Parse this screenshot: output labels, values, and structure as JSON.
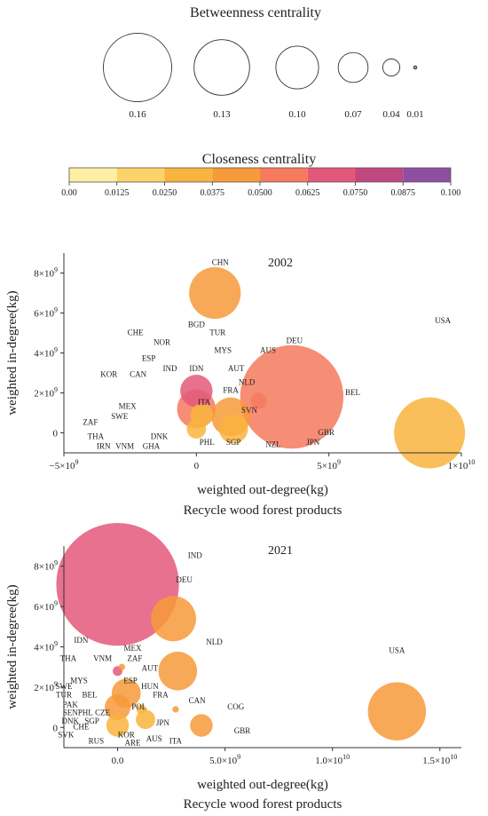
{
  "legend_size": {
    "title": "Betweenness centrality",
    "items": [
      {
        "label": "0.16",
        "value": 0.16
      },
      {
        "label": "0.13",
        "value": 0.13
      },
      {
        "label": "0.10",
        "value": 0.1
      },
      {
        "label": "0.07",
        "value": 0.07
      },
      {
        "label": "0.04",
        "value": 0.04
      },
      {
        "label": "0.01",
        "value": 0.01
      }
    ]
  },
  "legend_color": {
    "title": "Closeness centrality",
    "ticks": [
      "0.00",
      "0.0125",
      "0.0250",
      "0.0375",
      "0.0500",
      "0.0625",
      "0.0750",
      "0.0875",
      "0.100"
    ],
    "colors": [
      "#ffefa3",
      "#fcd36a",
      "#f9b43e",
      "#f79a3a",
      "#f57a5e",
      "#e3587a",
      "#c0477f",
      "#8e4fa0"
    ]
  },
  "chart_data": [
    {
      "type": "scatter",
      "title": "2002",
      "xlabel": "weighted out-degree(kg)",
      "ylabel": "weighted in-degree(kg)",
      "subtitle": "Recycle wood forest products",
      "xlim": [
        -5000000000,
        10000000000
      ],
      "ylim": [
        -1000000000,
        9000000000
      ],
      "xticks": [
        {
          "value": -5000000000,
          "mant": "−5×10",
          "exp": "9"
        },
        {
          "value": 0,
          "mant": "0",
          "exp": ""
        },
        {
          "value": 5000000000,
          "mant": "5×10",
          "exp": "9"
        },
        {
          "value": 10000000000,
          "mant": "1×10",
          "exp": "10"
        }
      ],
      "yticks": [
        {
          "value": 0,
          "mant": "0",
          "exp": ""
        },
        {
          "value": 2000000000,
          "mant": "2×10",
          "exp": "9"
        },
        {
          "value": 4000000000,
          "mant": "4×10",
          "exp": "9"
        },
        {
          "value": 6000000000,
          "mant": "6×10",
          "exp": "9"
        },
        {
          "value": 8000000000,
          "mant": "8×10",
          "exp": "9"
        }
      ],
      "points": [
        {
          "x": 3600000000,
          "y": 1800000000,
          "betweenness": 0.16,
          "closeness": 0.05
        },
        {
          "x": 8800000000,
          "y": 0,
          "betweenness": 0.11,
          "closeness": 0.035
        },
        {
          "x": 700000000,
          "y": 7000000000,
          "betweenness": 0.08,
          "closeness": 0.045
        },
        {
          "x": 0,
          "y": 2100000000,
          "betweenness": 0.05,
          "closeness": 0.065
        },
        {
          "x": 0,
          "y": 1200000000,
          "betweenness": 0.06,
          "closeness": 0.06
        },
        {
          "x": 1300000000,
          "y": 800000000,
          "betweenness": 0.06,
          "closeness": 0.04
        },
        {
          "x": 1400000000,
          "y": 200000000,
          "betweenness": 0.045,
          "closeness": 0.03
        },
        {
          "x": 200000000,
          "y": 900000000,
          "betweenness": 0.035,
          "closeness": 0.028
        },
        {
          "x": 0,
          "y": 200000000,
          "betweenness": 0.03,
          "closeness": 0.03
        },
        {
          "x": 2350000000,
          "y": 1600000000,
          "betweenness": 0.025,
          "closeness": 0.05
        }
      ],
      "labels": [
        {
          "text": "CHN",
          "x": 900000000,
          "y": 8400000000
        },
        {
          "text": "BGD",
          "x": 0,
          "y": 5300000000
        },
        {
          "text": "CHE",
          "x": -2300000000,
          "y": 4900000000
        },
        {
          "text": "TUR",
          "x": 800000000,
          "y": 4900000000
        },
        {
          "text": "NOR",
          "x": -1300000000,
          "y": 4400000000
        },
        {
          "text": "MYS",
          "x": 1000000000,
          "y": 4000000000
        },
        {
          "text": "AUS",
          "x": 2700000000,
          "y": 4000000000
        },
        {
          "text": "DEU",
          "x": 3700000000,
          "y": 4500000000
        },
        {
          "text": "USA",
          "x": 9300000000,
          "y": 5500000000
        },
        {
          "text": "ESP",
          "x": -1800000000,
          "y": 3600000000
        },
        {
          "text": "IND",
          "x": -1000000000,
          "y": 3100000000
        },
        {
          "text": "IDN",
          "x": 0,
          "y": 3100000000
        },
        {
          "text": "AUT",
          "x": 1500000000,
          "y": 3100000000
        },
        {
          "text": "KOR",
          "x": -3300000000,
          "y": 2800000000
        },
        {
          "text": "CAN",
          "x": -2200000000,
          "y": 2800000000
        },
        {
          "text": "NLD",
          "x": 1900000000,
          "y": 2400000000
        },
        {
          "text": "FRA",
          "x": 1300000000,
          "y": 2000000000
        },
        {
          "text": "BEL",
          "x": 5900000000,
          "y": 1900000000
        },
        {
          "text": "MEX",
          "x": -2600000000,
          "y": 1200000000
        },
        {
          "text": "ITA",
          "x": 300000000,
          "y": 1400000000
        },
        {
          "text": "SVN",
          "x": 2000000000,
          "y": 1000000000
        },
        {
          "text": "SWE",
          "x": -2900000000,
          "y": 700000000
        },
        {
          "text": "ZAF",
          "x": -4000000000,
          "y": 400000000
        },
        {
          "text": "GBR",
          "x": 4900000000,
          "y": -100000000
        },
        {
          "text": "THA",
          "x": -3800000000,
          "y": -300000000
        },
        {
          "text": "DNK",
          "x": -1400000000,
          "y": -300000000
        },
        {
          "text": "IRN",
          "x": -3500000000,
          "y": -800000000
        },
        {
          "text": "VNM",
          "x": -2700000000,
          "y": -800000000
        },
        {
          "text": "GHA",
          "x": -1700000000,
          "y": -800000000
        },
        {
          "text": "PHL",
          "x": 400000000,
          "y": -600000000
        },
        {
          "text": "SGP",
          "x": 1400000000,
          "y": -600000000
        },
        {
          "text": "NZL",
          "x": 2900000000,
          "y": -700000000
        },
        {
          "text": "JPN",
          "x": 4400000000,
          "y": -600000000
        }
      ]
    },
    {
      "type": "scatter",
      "title": "2021",
      "xlabel": "weighted out-degree(kg)",
      "ylabel": "weighted in-degree(kg)",
      "subtitle": "Recycle wood forest products",
      "xlim": [
        -2500000000,
        16000000000
      ],
      "ylim": [
        -1000000000,
        9000000000
      ],
      "xticks": [
        {
          "value": 0,
          "mant": "0.0",
          "exp": ""
        },
        {
          "value": 5000000000,
          "mant": "5.0×10",
          "exp": "9"
        },
        {
          "value": 10000000000,
          "mant": "1.0×10",
          "exp": "10"
        },
        {
          "value": 15000000000,
          "mant": "1.5×10",
          "exp": "10"
        }
      ],
      "yticks": [
        {
          "value": 0,
          "mant": "0",
          "exp": ""
        },
        {
          "value": 2000000000,
          "mant": "2×10",
          "exp": "9"
        },
        {
          "value": 4000000000,
          "mant": "4×10",
          "exp": "9"
        },
        {
          "value": 6000000000,
          "mant": "6×10",
          "exp": "9"
        },
        {
          "value": 8000000000,
          "mant": "8×10",
          "exp": "9"
        }
      ],
      "points": [
        {
          "x": 0,
          "y": 7100000000,
          "betweenness": 0.19,
          "closeness": 0.075
        },
        {
          "x": 13000000000,
          "y": 800000000,
          "betweenness": 0.09,
          "closeness": 0.045
        },
        {
          "x": 2600000000,
          "y": 5400000000,
          "betweenness": 0.07,
          "closeness": 0.045
        },
        {
          "x": 2800000000,
          "y": 2800000000,
          "betweenness": 0.06,
          "closeness": 0.045
        },
        {
          "x": 400000000,
          "y": 1700000000,
          "betweenness": 0.045,
          "closeness": 0.045
        },
        {
          "x": 0,
          "y": 1000000000,
          "betweenness": 0.04,
          "closeness": 0.045
        },
        {
          "x": 0,
          "y": 100000000,
          "betweenness": 0.035,
          "closeness": 0.03
        },
        {
          "x": 1300000000,
          "y": 400000000,
          "betweenness": 0.03,
          "closeness": 0.03
        },
        {
          "x": 3900000000,
          "y": 100000000,
          "betweenness": 0.035,
          "closeness": 0.045
        },
        {
          "x": 0,
          "y": 2800000000,
          "betweenness": 0.015,
          "closeness": 0.07
        },
        {
          "x": 200000000,
          "y": 3000000000,
          "betweenness": 0.01,
          "closeness": 0.045
        },
        {
          "x": 1100000000,
          "y": 900000000,
          "betweenness": 0.015,
          "closeness": 0.035
        },
        {
          "x": 2700000000,
          "y": 900000000,
          "betweenness": 0.01,
          "closeness": 0.045
        }
      ],
      "labels": [
        {
          "text": "IND",
          "x": 3600000000,
          "y": 8400000000
        },
        {
          "text": "DEU",
          "x": 3100000000,
          "y": 7200000000
        },
        {
          "text": "USA",
          "x": 13000000000,
          "y": 3700000000
        },
        {
          "text": "NLD",
          "x": 4500000000,
          "y": 4100000000
        },
        {
          "text": "IDN",
          "x": -1700000000,
          "y": 4200000000
        },
        {
          "text": "MEX",
          "x": 700000000,
          "y": 3800000000
        },
        {
          "text": "THA",
          "x": -2300000000,
          "y": 3300000000
        },
        {
          "text": "VNM",
          "x": -700000000,
          "y": 3300000000
        },
        {
          "text": "ZAF",
          "x": 800000000,
          "y": 3300000000
        },
        {
          "text": "AUT",
          "x": 1500000000,
          "y": 2800000000
        },
        {
          "text": "MYS",
          "x": -1800000000,
          "y": 2200000000
        },
        {
          "text": "ESP",
          "x": 600000000,
          "y": 2200000000
        },
        {
          "text": "SWE",
          "x": -2500000000,
          "y": 1900000000
        },
        {
          "text": "HUN",
          "x": 1500000000,
          "y": 1900000000
        },
        {
          "text": "BEL",
          "x": -1300000000,
          "y": 1500000000
        },
        {
          "text": "TUR",
          "x": -2500000000,
          "y": 1500000000
        },
        {
          "text": "FRA",
          "x": 2000000000,
          "y": 1500000000
        },
        {
          "text": "CAN",
          "x": 3700000000,
          "y": 1200000000
        },
        {
          "text": "PAK",
          "x": -2200000000,
          "y": 1000000000
        },
        {
          "text": "COG",
          "x": 5500000000,
          "y": 900000000
        },
        {
          "text": "SEN",
          "x": -2200000000,
          "y": 600000000
        },
        {
          "text": "PHL",
          "x": -1500000000,
          "y": 600000000
        },
        {
          "text": "CZE",
          "x": -700000000,
          "y": 600000000
        },
        {
          "text": "POL",
          "x": 1000000000,
          "y": 900000000
        },
        {
          "text": "DNK",
          "x": -2200000000,
          "y": 200000000
        },
        {
          "text": "SGP",
          "x": -1200000000,
          "y": 200000000
        },
        {
          "text": "CHE",
          "x": -1700000000,
          "y": -100000000
        },
        {
          "text": "JPN",
          "x": 2100000000,
          "y": 100000000
        },
        {
          "text": "GBR",
          "x": 5800000000,
          "y": -300000000
        },
        {
          "text": "SVK",
          "x": -2400000000,
          "y": -500000000
        },
        {
          "text": "KOR",
          "x": 400000000,
          "y": -500000000
        },
        {
          "text": "RUS",
          "x": -1000000000,
          "y": -800000000
        },
        {
          "text": "ARE",
          "x": 700000000,
          "y": -900000000
        },
        {
          "text": "AUS",
          "x": 1700000000,
          "y": -700000000
        },
        {
          "text": "ITA",
          "x": 2700000000,
          "y": -800000000
        }
      ]
    }
  ]
}
